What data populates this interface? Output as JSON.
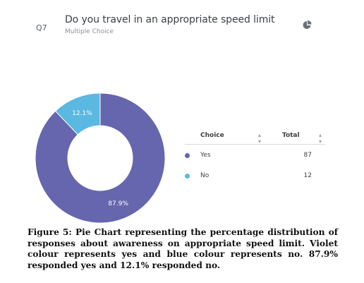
{
  "question": {
    "number": "Q7",
    "title": "Do you travel in an appropriate speed limit",
    "type": "Multiple Choice",
    "chart_icon": "pie-chart-icon"
  },
  "colors": {
    "yes": "#6566ad",
    "no": "#5ab8e1"
  },
  "table": {
    "header_choice": "Choice",
    "header_total": "Total",
    "sort_icon": "sort-arrows-icon",
    "rows": [
      {
        "label": "Yes",
        "value": "87"
      },
      {
        "label": "No",
        "value": "12"
      }
    ]
  },
  "chart_data": {
    "type": "pie",
    "donut": true,
    "categories": [
      "Yes",
      "No"
    ],
    "values": [
      87.9,
      12.1
    ],
    "data_labels": [
      "87.9%",
      "12.1%"
    ],
    "legend": "right"
  },
  "caption": {
    "text": "Figure 5: Pie Chart representing the percentage distribution of responses about awareness on appropriate speed limit. Violet colour represents yes and blue colour represents no.  87.9% responded yes and 12.1% responded no."
  }
}
